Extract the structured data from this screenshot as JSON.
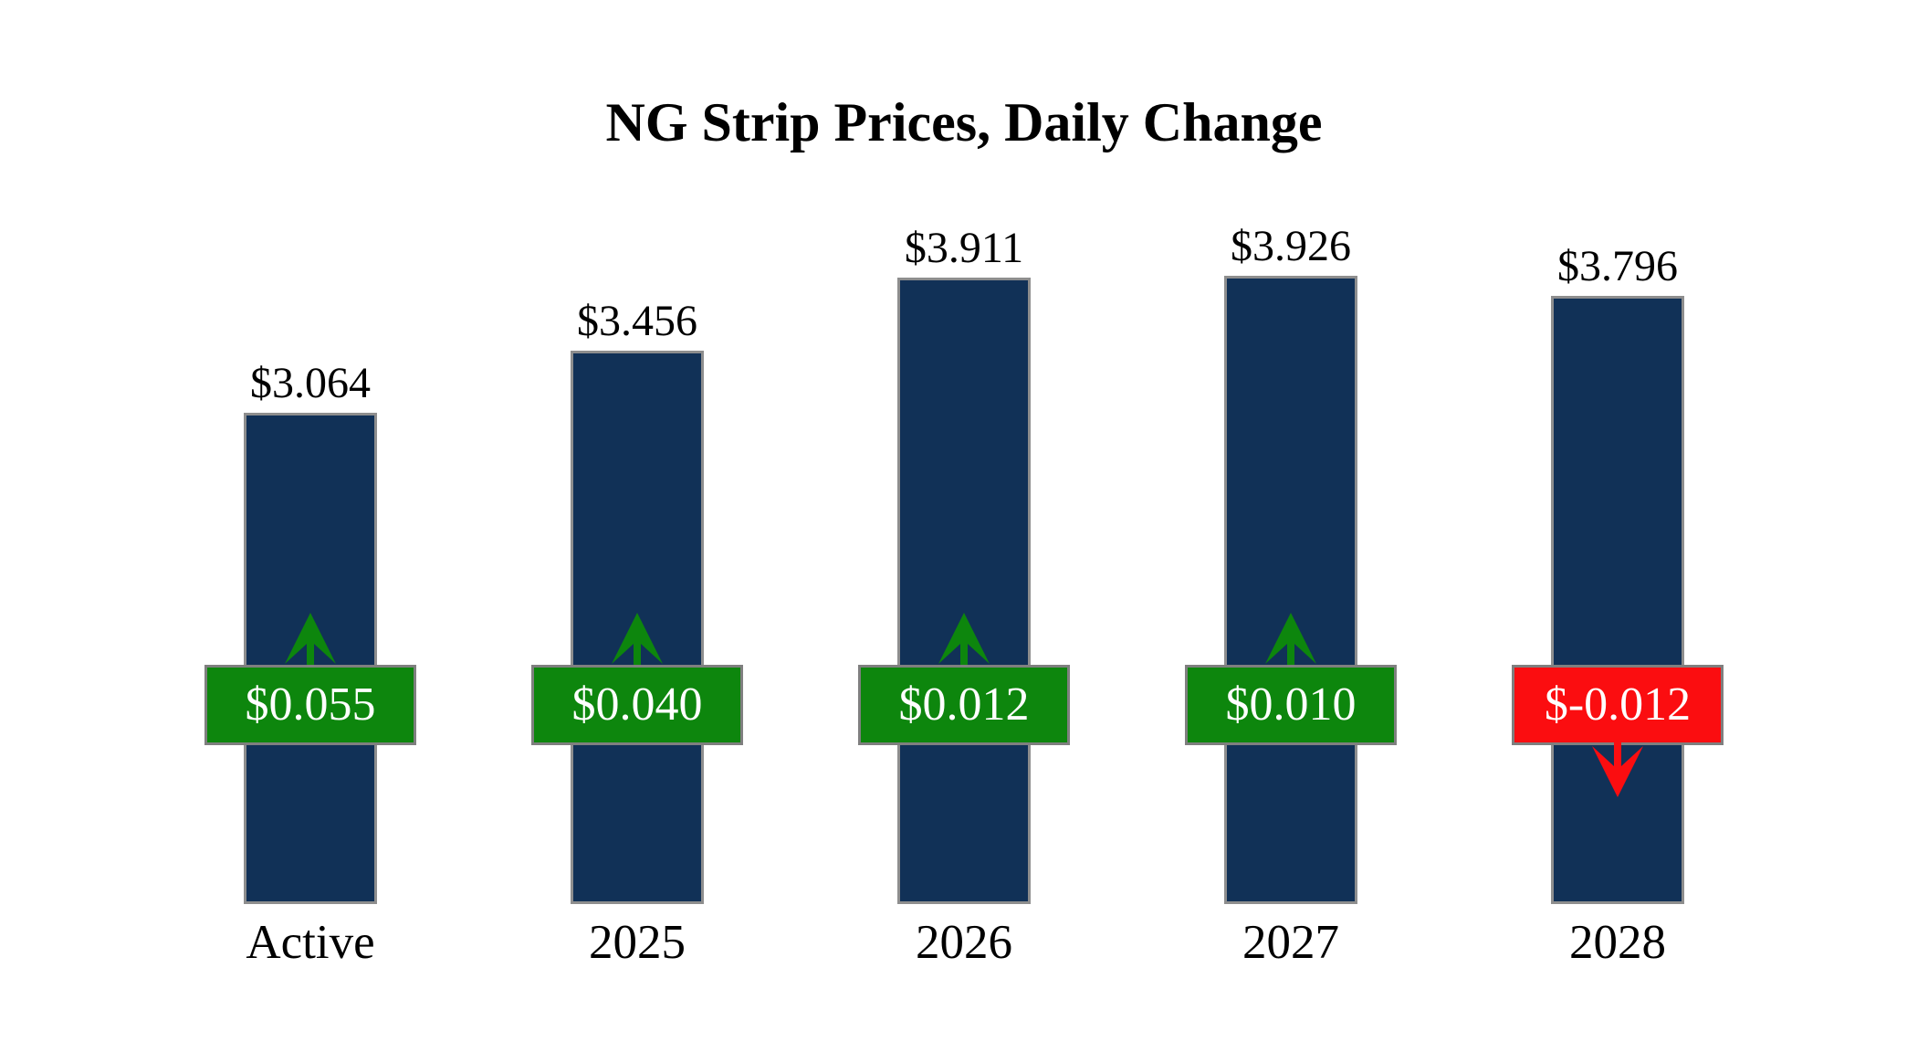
{
  "title": "NG Strip Prices, Daily Change",
  "colors": {
    "background": "#ffffff",
    "text": "#000000",
    "bar": "#113157",
    "bar_border": "#8e8e8e",
    "badge_border": "#7f7f7f",
    "badge_text": "#ffffff",
    "up": "#0d860d",
    "down": "#fb0d10"
  },
  "chart_data": {
    "type": "bar",
    "title": "NG Strip Prices, Daily Change",
    "categories": [
      "Active",
      "2025",
      "2026",
      "2027",
      "2028"
    ],
    "values": [
      3.064,
      3.456,
      3.911,
      3.926,
      3.796
    ],
    "changes": [
      0.055,
      0.04,
      0.012,
      0.01,
      -0.012
    ],
    "price_labels": [
      "$3.064",
      "$3.456",
      "$3.911",
      "$3.926",
      "$3.796"
    ],
    "change_labels": [
      "$0.055",
      "$0.040",
      "$0.012",
      "$0.010",
      "$-0.012"
    ],
    "directions": [
      "up",
      "up",
      "up",
      "up",
      "down"
    ],
    "ylabel": "",
    "xlabel": "",
    "ylim": [
      0,
      4.2
    ],
    "baseline": 0,
    "grid": false,
    "legend": "none"
  }
}
